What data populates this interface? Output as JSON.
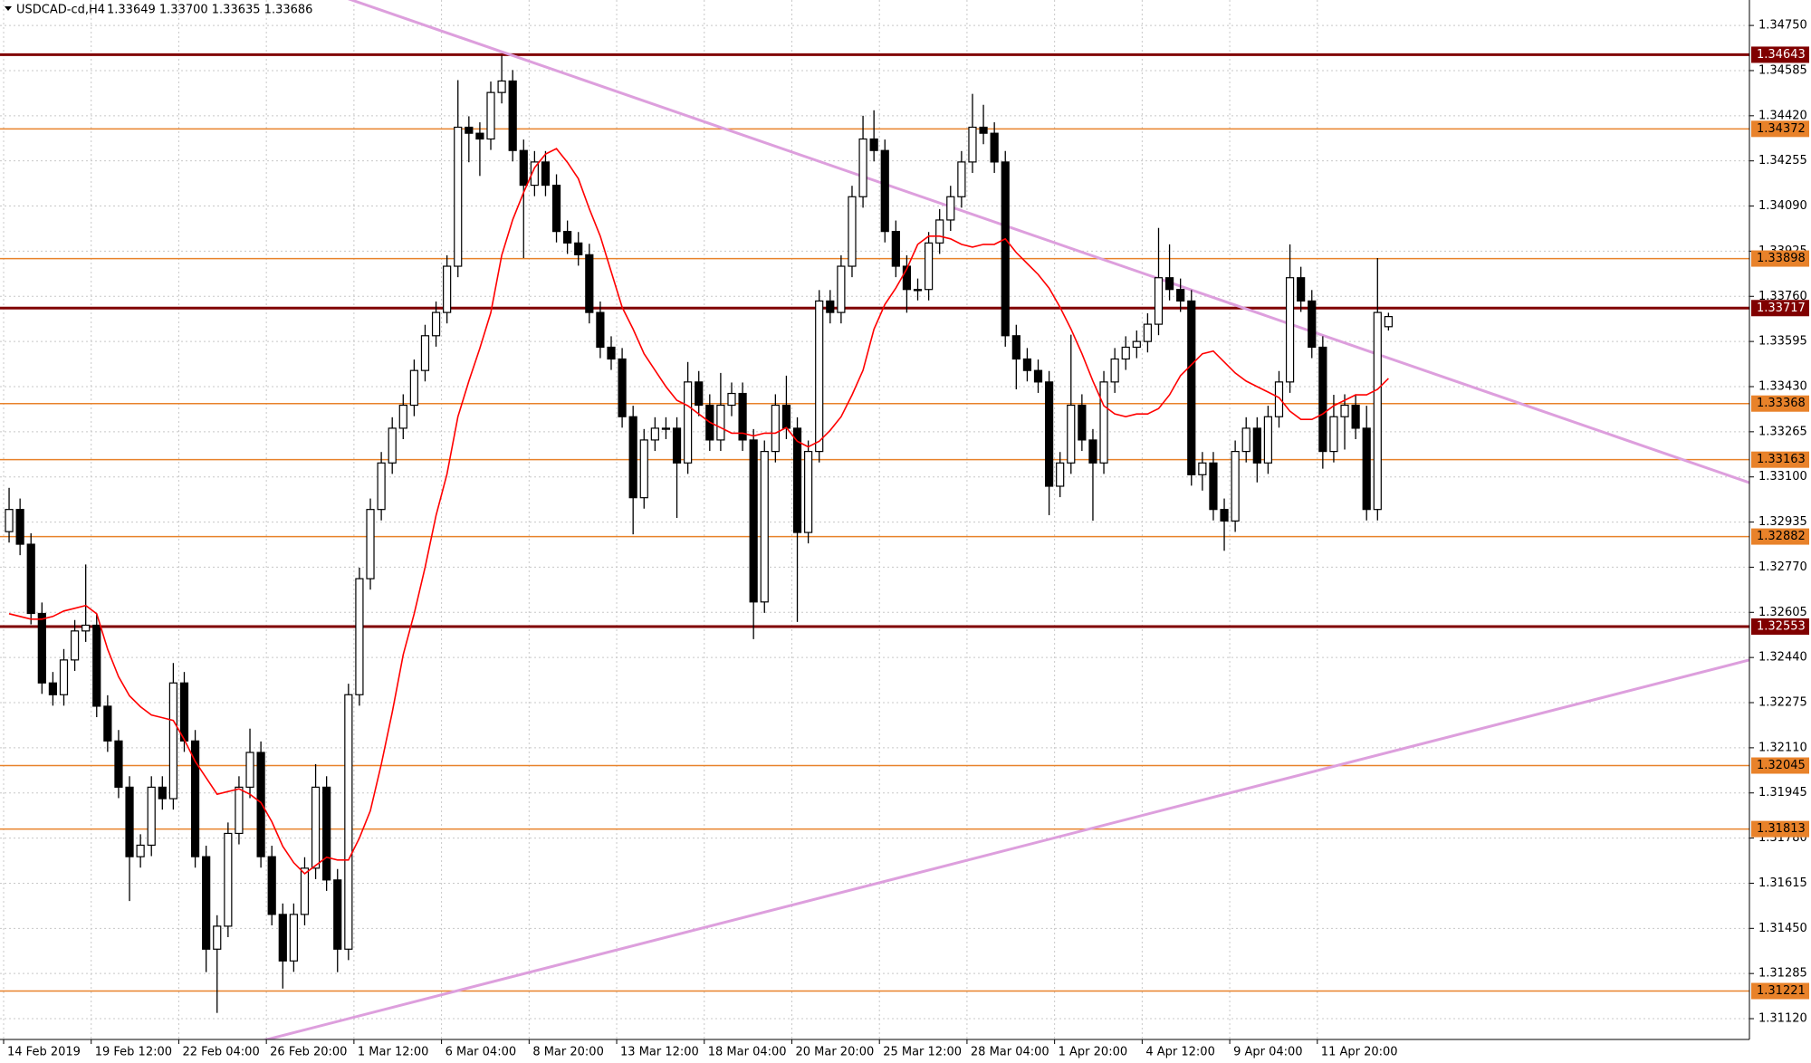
{
  "chart_data": {
    "type": "candlestick",
    "title": "USDCAD-cd,H4",
    "subtitle": "1.33649 1.33700 1.33635 1.33686",
    "categories": [
      "14 Feb 2019",
      null,
      null,
      null,
      null,
      null,
      null,
      null,
      "19 Feb 12:00",
      null,
      null,
      null,
      null,
      null,
      null,
      null,
      "22 Feb 04:00",
      null,
      null,
      null,
      null,
      null,
      null,
      null,
      "26 Feb 20:00",
      null,
      null,
      null,
      null,
      null,
      null,
      null,
      "1 Mar 12:00",
      null,
      null,
      null,
      null,
      null,
      null,
      null,
      "6 Mar 04:00",
      null,
      null,
      null,
      null,
      null,
      null,
      null,
      "8 Mar 20:00",
      null,
      null,
      null,
      null,
      null,
      null,
      null,
      "13 Mar 12:00",
      null,
      null,
      null,
      null,
      null,
      null,
      null,
      "18 Mar 04:00",
      null,
      null,
      null,
      null,
      null,
      null,
      null,
      "20 Mar 20:00",
      null,
      null,
      null,
      null,
      null,
      null,
      null,
      "25 Mar 12:00",
      null,
      null,
      null,
      null,
      null,
      null,
      null,
      "28 Mar 04:00",
      null,
      null,
      null,
      null,
      null,
      null,
      null,
      "1 Apr 20:00",
      null,
      null,
      null,
      null,
      null,
      null,
      null,
      "4 Apr 12:00",
      null,
      null,
      null,
      null,
      null,
      null,
      null,
      "9 Apr 04:00",
      null,
      null,
      null,
      null,
      null,
      null,
      null,
      "11 Apr 20:00",
      null,
      null,
      null,
      null,
      null,
      null
    ],
    "open": [
      1.329,
      1.32981,
      1.32854,
      1.32601,
      1.32347,
      1.32304,
      1.32431,
      1.32537,
      1.32558,
      1.32262,
      1.32135,
      1.31966,
      1.31712,
      1.31754,
      1.31966,
      1.31924,
      1.32347,
      1.32135,
      1.31712,
      1.31374,
      1.31458,
      1.31797,
      1.31966,
      1.32093,
      1.31712,
      1.31501,
      1.31331,
      1.31501,
      1.3167,
      1.31966,
      1.31627,
      1.31374,
      1.32304,
      1.32728,
      1.32981,
      1.33151,
      1.33278,
      1.33362,
      1.33489,
      1.33616,
      1.33701,
      1.3387,
      1.34378,
      1.34356,
      1.34335,
      1.34505,
      1.34547,
      1.34293,
      1.34166,
      1.34251,
      1.34166,
      1.33997,
      1.33955,
      1.33912,
      1.33701,
      1.33574,
      1.33531,
      1.3332,
      1.33024,
      1.33235,
      1.33278,
      1.33278,
      1.33151,
      1.33447,
      1.33362,
      1.33235,
      1.33362,
      1.33405,
      1.33235,
      1.32643,
      1.33193,
      1.33362,
      1.33278,
      1.32897,
      1.33193,
      1.33743,
      1.33701,
      1.3387,
      1.34124,
      1.34335,
      1.34293,
      1.33997,
      1.3387,
      1.33785,
      1.33785,
      1.33955,
      1.34039,
      1.34124,
      1.34251,
      1.34378,
      1.34356,
      1.34251,
      1.33616,
      1.33531,
      1.33489,
      1.33447,
      1.33066,
      1.33151,
      1.33362,
      1.33235,
      1.33151,
      1.33447,
      1.33531,
      1.33574,
      1.33595,
      1.33658,
      1.33828,
      1.33785,
      1.33743,
      1.33108,
      1.33151,
      1.32981,
      1.32939,
      1.33193,
      1.33278,
      1.33151,
      1.3332,
      1.33447,
      1.33828,
      1.33743,
      1.33574,
      1.33193,
      1.3332,
      1.33362,
      1.33278,
      1.32981,
      1.33649
    ],
    "high": [
      1.3306,
      1.33021,
      1.32894,
      1.32641,
      1.32387,
      1.32471,
      1.32577,
      1.3278,
      1.32598,
      1.32302,
      1.32175,
      1.32006,
      1.31794,
      1.32006,
      1.32006,
      1.3242,
      1.32387,
      1.32175,
      1.31752,
      1.31498,
      1.31837,
      1.32006,
      1.3218,
      1.32133,
      1.31752,
      1.31541,
      1.31541,
      1.3171,
      1.3205,
      1.32006,
      1.31667,
      1.32344,
      1.32768,
      1.33021,
      1.33191,
      1.33318,
      1.33402,
      1.33529,
      1.33656,
      1.33741,
      1.3391,
      1.3455,
      1.34418,
      1.34396,
      1.34545,
      1.3464,
      1.34587,
      1.34333,
      1.34291,
      1.34291,
      1.34206,
      1.34037,
      1.33995,
      1.33952,
      1.33741,
      1.33614,
      1.33571,
      1.3336,
      1.33275,
      1.33318,
      1.33318,
      1.33318,
      1.3352,
      1.33487,
      1.33402,
      1.3348,
      1.33445,
      1.33445,
      1.33275,
      1.33233,
      1.33402,
      1.3347,
      1.33318,
      1.33233,
      1.33783,
      1.33783,
      1.3391,
      1.34164,
      1.3442,
      1.3444,
      1.34333,
      1.34037,
      1.3391,
      1.33825,
      1.33995,
      1.34079,
      1.34164,
      1.34291,
      1.345,
      1.3446,
      1.34396,
      1.34291,
      1.33656,
      1.33571,
      1.33529,
      1.33487,
      1.33191,
      1.3362,
      1.33402,
      1.33275,
      1.33487,
      1.33571,
      1.33614,
      1.33635,
      1.33698,
      1.3401,
      1.3395,
      1.33825,
      1.33783,
      1.33191,
      1.33191,
      1.33021,
      1.33233,
      1.33318,
      1.33318,
      1.3336,
      1.33487,
      1.3395,
      1.33868,
      1.33783,
      1.33614,
      1.334,
      1.33402,
      1.33402,
      1.3336,
      1.339,
      1.337
    ],
    "low": [
      1.3286,
      1.32814,
      1.32561,
      1.32307,
      1.32264,
      1.32264,
      1.32391,
      1.32497,
      1.32222,
      1.32095,
      1.31926,
      1.3155,
      1.31672,
      1.31714,
      1.31884,
      1.31884,
      1.32095,
      1.31672,
      1.3129,
      1.31141,
      1.31418,
      1.31757,
      1.31926,
      1.31672,
      1.31461,
      1.3123,
      1.31291,
      1.31461,
      1.3163,
      1.31587,
      1.3129,
      1.31334,
      1.32264,
      1.32688,
      1.32941,
      1.33111,
      1.33238,
      1.33322,
      1.33449,
      1.33576,
      1.33661,
      1.3383,
      1.3425,
      1.342,
      1.34295,
      1.34465,
      1.34253,
      1.339,
      1.34126,
      1.34126,
      1.33957,
      1.33915,
      1.33872,
      1.33661,
      1.33534,
      1.33491,
      1.3328,
      1.3289,
      1.32984,
      1.33195,
      1.33238,
      1.3295,
      1.33111,
      1.33322,
      1.33195,
      1.33195,
      1.33322,
      1.33195,
      1.32507,
      1.32603,
      1.33153,
      1.33238,
      1.3257,
      1.32857,
      1.33153,
      1.33661,
      1.33661,
      1.3383,
      1.34084,
      1.34253,
      1.33957,
      1.3383,
      1.337,
      1.33745,
      1.33745,
      1.33915,
      1.33999,
      1.34084,
      1.34211,
      1.34316,
      1.34211,
      1.33576,
      1.3342,
      1.33449,
      1.33407,
      1.3296,
      1.33026,
      1.33111,
      1.33195,
      1.3294,
      1.33111,
      1.33407,
      1.33491,
      1.33534,
      1.33555,
      1.33618,
      1.33745,
      1.33703,
      1.33068,
      1.3305,
      1.32941,
      1.3283,
      1.32899,
      1.33153,
      1.3308,
      1.33111,
      1.3328,
      1.33407,
      1.33703,
      1.33534,
      1.3313,
      1.33153,
      1.332,
      1.33238,
      1.32941,
      1.32941,
      1.33635
    ],
    "close": [
      1.32981,
      1.32854,
      1.32601,
      1.32347,
      1.32304,
      1.32431,
      1.32537,
      1.32558,
      1.32262,
      1.32135,
      1.31966,
      1.31712,
      1.31754,
      1.31966,
      1.31924,
      1.32347,
      1.32135,
      1.31712,
      1.31374,
      1.31458,
      1.31797,
      1.31966,
      1.32093,
      1.31712,
      1.31501,
      1.31331,
      1.31501,
      1.3167,
      1.31966,
      1.31627,
      1.31374,
      1.32304,
      1.32728,
      1.32981,
      1.33151,
      1.33278,
      1.33362,
      1.33489,
      1.33616,
      1.33701,
      1.3387,
      1.34378,
      1.34356,
      1.34335,
      1.34505,
      1.34547,
      1.34293,
      1.34166,
      1.34251,
      1.34166,
      1.33997,
      1.33955,
      1.33912,
      1.33701,
      1.33574,
      1.33531,
      1.3332,
      1.33024,
      1.33235,
      1.33278,
      1.33278,
      1.33151,
      1.33447,
      1.33362,
      1.33235,
      1.33362,
      1.33405,
      1.33235,
      1.32643,
      1.33193,
      1.33362,
      1.33278,
      1.32897,
      1.33193,
      1.33743,
      1.33701,
      1.3387,
      1.34124,
      1.34335,
      1.34293,
      1.33997,
      1.3387,
      1.33785,
      1.33785,
      1.33955,
      1.34039,
      1.34124,
      1.34251,
      1.34378,
      1.34356,
      1.34251,
      1.33616,
      1.33531,
      1.33489,
      1.33447,
      1.33066,
      1.33151,
      1.33362,
      1.33235,
      1.33151,
      1.33447,
      1.33531,
      1.33574,
      1.33595,
      1.33658,
      1.33828,
      1.33785,
      1.33743,
      1.33108,
      1.33151,
      1.32981,
      1.32939,
      1.33193,
      1.33278,
      1.33151,
      1.3332,
      1.33447,
      1.33828,
      1.33743,
      1.33574,
      1.33193,
      1.3332,
      1.33362,
      1.33278,
      1.32981,
      1.33701,
      1.33686
    ],
    "ma": {
      "color": "#ff0000",
      "values": [
        1.326,
        1.3259,
        1.3258,
        1.3258,
        1.3259,
        1.3261,
        1.3262,
        1.3263,
        1.326,
        1.3247,
        1.3237,
        1.323,
        1.3226,
        1.3223,
        1.3222,
        1.3221,
        1.3214,
        1.3206,
        1.32,
        1.3194,
        1.3195,
        1.3196,
        1.3194,
        1.3191,
        1.3184,
        1.3175,
        1.3169,
        1.3165,
        1.3168,
        1.3171,
        1.317,
        1.317,
        1.3178,
        1.3188,
        1.3205,
        1.3224,
        1.3245,
        1.326,
        1.3277,
        1.3296,
        1.3311,
        1.3332,
        1.3345,
        1.3357,
        1.337,
        1.3391,
        1.3404,
        1.3414,
        1.3423,
        1.3428,
        1.343,
        1.3425,
        1.3419,
        1.3408,
        1.3398,
        1.3385,
        1.3372,
        1.3364,
        1.3355,
        1.3349,
        1.3343,
        1.3338,
        1.3336,
        1.3333,
        1.333,
        1.3328,
        1.3326,
        1.3326,
        1.3325,
        1.3326,
        1.3326,
        1.3328,
        1.3323,
        1.3321,
        1.3323,
        1.3327,
        1.3332,
        1.334,
        1.3349,
        1.3364,
        1.3373,
        1.3379,
        1.3386,
        1.3395,
        1.3398,
        1.3398,
        1.3397,
        1.3395,
        1.3394,
        1.3395,
        1.3395,
        1.3397,
        1.3392,
        1.3388,
        1.3384,
        1.3379,
        1.3372,
        1.3364,
        1.3355,
        1.3345,
        1.3336,
        1.3333,
        1.3332,
        1.3333,
        1.3333,
        1.3335,
        1.334,
        1.3347,
        1.3351,
        1.3355,
        1.3356,
        1.3352,
        1.3348,
        1.3345,
        1.3343,
        1.3341,
        1.3339,
        1.3334,
        1.3331,
        1.3331,
        1.3333,
        1.3336,
        1.3338,
        1.334,
        1.334,
        1.3342,
        1.3346
      ]
    },
    "candle_color": "#000000",
    "levels": [
      {
        "value": 1.34643,
        "color": "#800000"
      },
      {
        "value": 1.34372,
        "color": "#e8822a"
      },
      {
        "value": 1.33898,
        "color": "#e8822a"
      },
      {
        "value": 1.33717,
        "color": "#800000"
      },
      {
        "value": 1.33368,
        "color": "#e8822a"
      },
      {
        "value": 1.33163,
        "color": "#e8822a"
      },
      {
        "value": 1.32882,
        "color": "#e8822a"
      },
      {
        "value": 1.32553,
        "color": "#800000"
      },
      {
        "value": 1.32045,
        "color": "#e8822a"
      },
      {
        "value": 1.31813,
        "color": "#e8822a"
      },
      {
        "value": 1.31221,
        "color": "#e8822a"
      }
    ],
    "trendlines": [
      {
        "start": 1.35287,
        "end": 1.33079,
        "color": "#dd9fdd"
      },
      {
        "start": 1.30794,
        "end": 1.32431,
        "color": "#dd9fdd"
      }
    ],
    "ylim": [
      1.31044,
      1.34843
    ],
    "yticks": [
      {
        "value": 1.3475,
        "label": "1.34750"
      },
      1.34585,
      {
        "value": 1.3442,
        "label": "1.34420"
      },
      1.34255,
      {
        "value": 1.3409,
        "label": "1.34090"
      },
      1.33925,
      {
        "value": 1.3376,
        "label": "1.33760"
      },
      1.33595,
      {
        "value": 1.3343,
        "label": "1.33430"
      },
      1.33265,
      {
        "value": 1.331,
        "label": "1.33100"
      },
      1.32935,
      {
        "value": 1.3277,
        "label": "1.32770"
      },
      1.32605,
      {
        "value": 1.3244,
        "label": "1.32440"
      },
      1.32275,
      {
        "value": 1.3211,
        "label": "1.32110"
      },
      1.31945,
      {
        "value": 1.3178,
        "label": "1.31780"
      },
      1.31615,
      {
        "value": 1.3145,
        "label": "1.31450"
      },
      1.31285,
      {
        "value": 1.3112,
        "label": "1.31120"
      }
    ],
    "grid": true
  }
}
